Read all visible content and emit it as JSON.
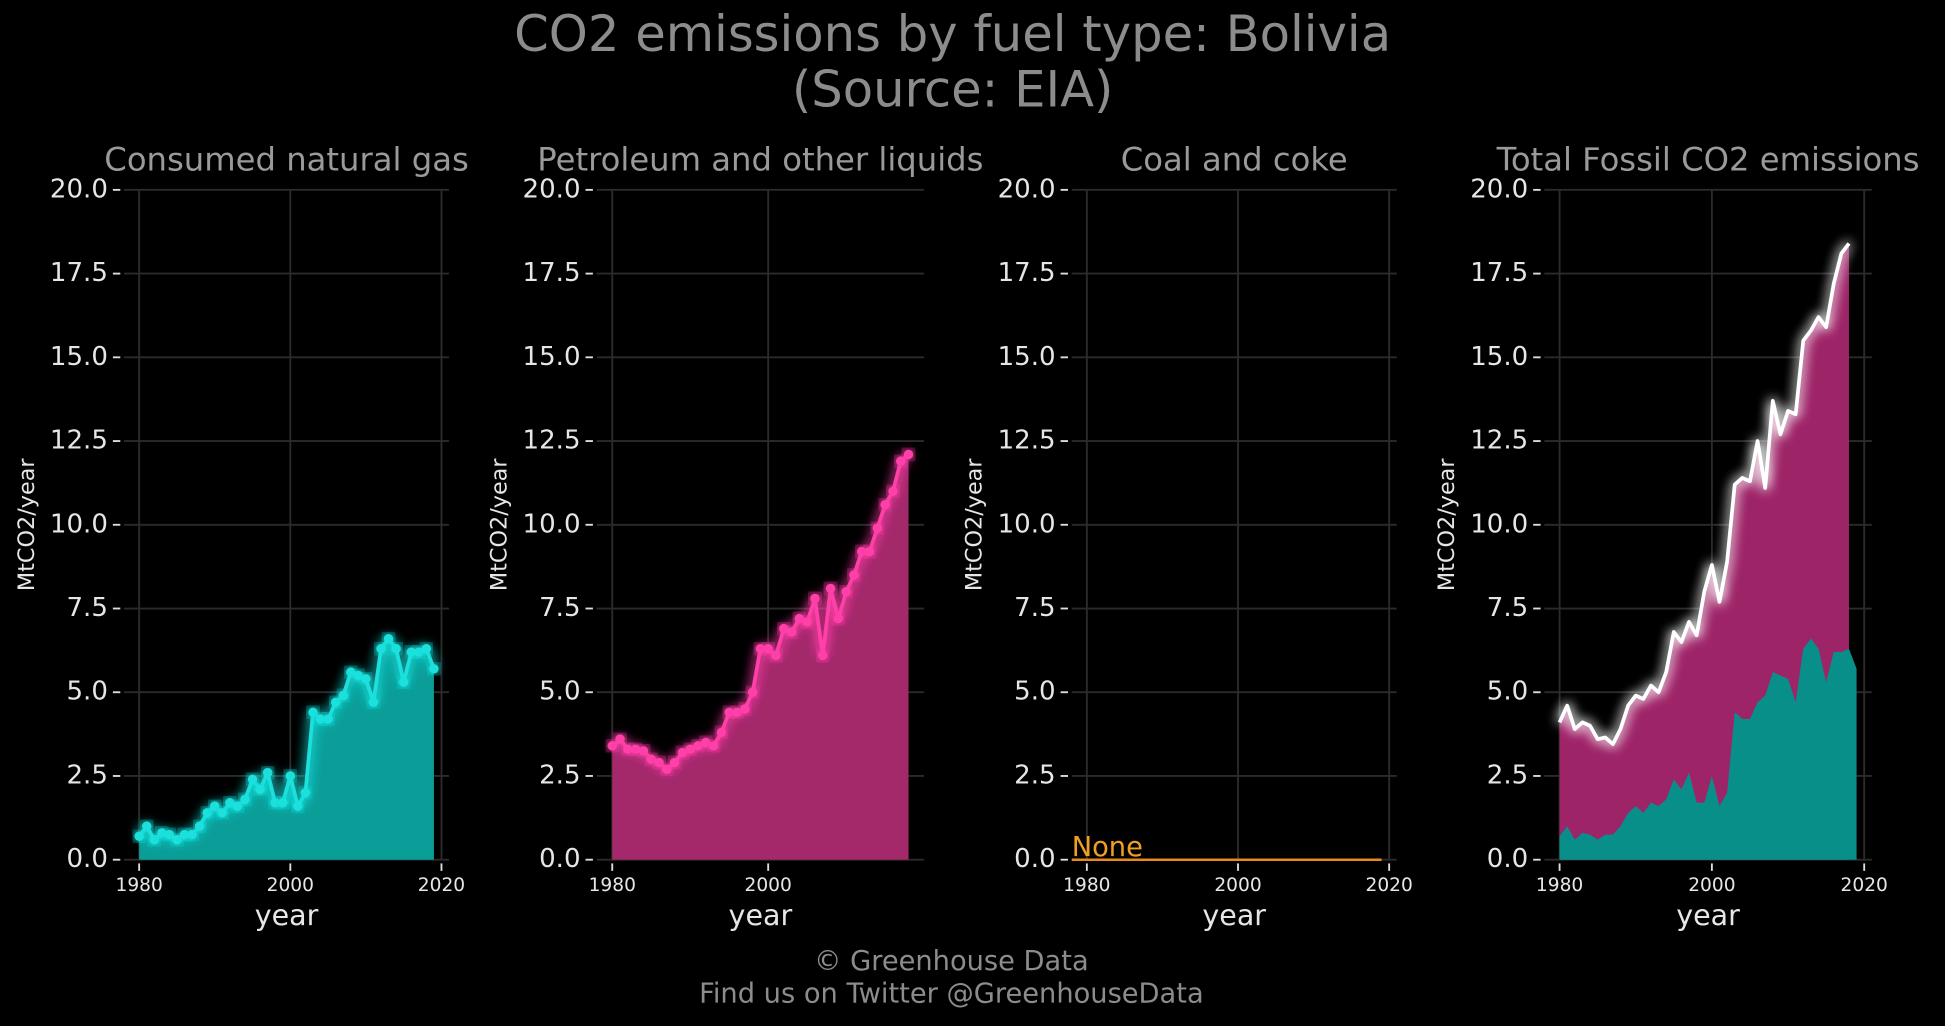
{
  "title": [
    "CO2 emissions by fuel type: Bolivia",
    "(Source: EIA)"
  ],
  "footer": [
    "© Greenhouse Data",
    "Find us on Twitter @GreenhouseData"
  ],
  "chart_data": [
    {
      "type": "area",
      "title": "Consumed natural gas",
      "xlabel": "year",
      "ylabel": "MtCO2/year",
      "x": [
        1980,
        1981,
        1982,
        1983,
        1984,
        1985,
        1986,
        1987,
        1988,
        1989,
        1990,
        1991,
        1992,
        1993,
        1994,
        1995,
        1996,
        1997,
        1998,
        1999,
        2000,
        2001,
        2002,
        2003,
        2004,
        2005,
        2006,
        2007,
        2008,
        2009,
        2010,
        2011,
        2012,
        2013,
        2014,
        2015,
        2016,
        2017,
        2018,
        2019
      ],
      "values": [
        0.7,
        1.0,
        0.6,
        0.8,
        0.75,
        0.6,
        0.75,
        0.75,
        1.0,
        1.4,
        1.6,
        1.4,
        1.7,
        1.6,
        1.8,
        2.4,
        2.1,
        2.6,
        1.7,
        1.7,
        2.5,
        1.6,
        2.0,
        4.4,
        4.2,
        4.2,
        4.7,
        4.9,
        5.6,
        5.5,
        5.4,
        4.7,
        6.3,
        6.6,
        6.3,
        5.3,
        6.2,
        6.2,
        6.3,
        5.7
      ],
      "color": "#0b9d98",
      "line_color": "#1ee0dc",
      "xlim": [
        1978,
        2021
      ],
      "ylim": [
        0,
        20
      ],
      "xticks": [
        1980,
        2000,
        2020
      ],
      "yticks": [
        {
          "value": 0,
          "label": "0.0"
        },
        2.5,
        {
          "value": 5,
          "label": "5.0"
        },
        7.5,
        {
          "value": 10,
          "label": "10.0"
        },
        12.5,
        {
          "value": 15,
          "label": "15.0"
        },
        17.5,
        {
          "value": 20,
          "label": "20.0"
        }
      ],
      "grid": true
    },
    {
      "type": "area",
      "title": "Petroleum and other liquids",
      "xlabel": "year",
      "ylabel": "MtCO2/year",
      "x": [
        1980,
        1981,
        1982,
        1983,
        1984,
        1985,
        1986,
        1987,
        1988,
        1989,
        1990,
        1991,
        1992,
        1993,
        1994,
        1995,
        1996,
        1997,
        1998,
        1999,
        2000,
        2001,
        2002,
        2003,
        2004,
        2005,
        2006,
        2007,
        2008,
        2009,
        2010,
        2011,
        2012,
        2013,
        2014,
        2015,
        2016,
        2017,
        2018
      ],
      "values": [
        3.4,
        3.6,
        3.3,
        3.3,
        3.25,
        3.0,
        2.9,
        2.7,
        2.9,
        3.2,
        3.3,
        3.4,
        3.5,
        3.4,
        3.8,
        4.4,
        4.4,
        4.5,
        5.0,
        6.3,
        6.3,
        6.1,
        6.9,
        6.8,
        7.2,
        7.1,
        7.8,
        6.1,
        8.1,
        7.2,
        8.0,
        8.5,
        9.2,
        9.2,
        9.9,
        10.6,
        11.0,
        11.9,
        12.1
      ],
      "color": "#a3296b",
      "line_color": "#ff3fa8",
      "xlim": [
        1978,
        2020
      ],
      "ylim": [
        0,
        20
      ],
      "xticks": [
        1980,
        2000
      ],
      "yticks": [
        {
          "value": 0,
          "label": "0.0"
        },
        2.5,
        {
          "value": 5,
          "label": "5.0"
        },
        7.5,
        {
          "value": 10,
          "label": "10.0"
        },
        12.5,
        {
          "value": 15,
          "label": "15.0"
        },
        17.5,
        {
          "value": 20,
          "label": "20.0"
        }
      ],
      "grid": true
    },
    {
      "type": "line",
      "title": "Coal and coke",
      "xlabel": "year",
      "ylabel": "MtCO2/year",
      "x": [
        1978,
        2019
      ],
      "values": [
        0,
        0
      ],
      "color": "#e8891c",
      "annotation": "None",
      "xlim": [
        1978,
        2021
      ],
      "ylim": [
        0,
        20
      ],
      "xticks": [
        1980,
        2000,
        2020
      ],
      "yticks": [
        {
          "value": 0,
          "label": "0.0"
        },
        2.5,
        {
          "value": 5,
          "label": "5.0"
        },
        7.5,
        {
          "value": 10,
          "label": "10.0"
        },
        12.5,
        {
          "value": 15,
          "label": "15.0"
        },
        17.5,
        {
          "value": 20,
          "label": "20.0"
        }
      ],
      "grid": true
    },
    {
      "type": "overlay-area",
      "title": "Total Fossil CO2 emissions",
      "xlabel": "year",
      "ylabel": "MtCO2/year",
      "x": [
        1980,
        1981,
        1982,
        1983,
        1984,
        1985,
        1986,
        1987,
        1988,
        1989,
        1990,
        1991,
        1992,
        1993,
        1994,
        1995,
        1996,
        1997,
        1998,
        1999,
        2000,
        2001,
        2002,
        2003,
        2004,
        2005,
        2006,
        2007,
        2008,
        2009,
        2010,
        2011,
        2012,
        2013,
        2014,
        2015,
        2016,
        2017,
        2018,
        2019
      ],
      "series": [
        {
          "color": "#9e2468",
          "line_color": "#ffffff",
          "values": [
            4.1,
            4.6,
            3.9,
            4.1,
            4.0,
            3.6,
            3.65,
            3.45,
            3.9,
            4.6,
            4.9,
            4.8,
            5.2,
            5.0,
            5.6,
            6.8,
            6.5,
            7.1,
            6.7,
            8.0,
            8.8,
            7.7,
            8.9,
            11.2,
            11.4,
            11.3,
            12.5,
            11.1,
            13.7,
            12.7,
            13.4,
            13.3,
            15.5,
            15.8,
            16.2,
            15.9,
            17.2,
            18.1,
            18.4,
            null
          ]
        },
        {
          "color": "#088f8a",
          "values": [
            0.7,
            1.0,
            0.6,
            0.8,
            0.75,
            0.6,
            0.75,
            0.75,
            1.0,
            1.4,
            1.6,
            1.4,
            1.7,
            1.6,
            1.8,
            2.4,
            2.1,
            2.6,
            1.7,
            1.7,
            2.5,
            1.6,
            2.0,
            4.4,
            4.2,
            4.2,
            4.7,
            4.9,
            5.6,
            5.5,
            5.4,
            4.7,
            6.3,
            6.6,
            6.3,
            5.3,
            6.2,
            6.2,
            6.3,
            5.7
          ]
        }
      ],
      "xlim": [
        1978,
        2021
      ],
      "ylim": [
        0,
        20
      ],
      "xticks": [
        1980,
        2000,
        2020
      ],
      "yticks": [
        {
          "value": 0,
          "label": "0.0"
        },
        2.5,
        {
          "value": 5,
          "label": "5.0"
        },
        7.5,
        {
          "value": 10,
          "label": "10.0"
        },
        12.5,
        {
          "value": 15,
          "label": "15.0"
        },
        17.5,
        {
          "value": 20,
          "label": "20.0"
        }
      ],
      "grid": true
    }
  ]
}
